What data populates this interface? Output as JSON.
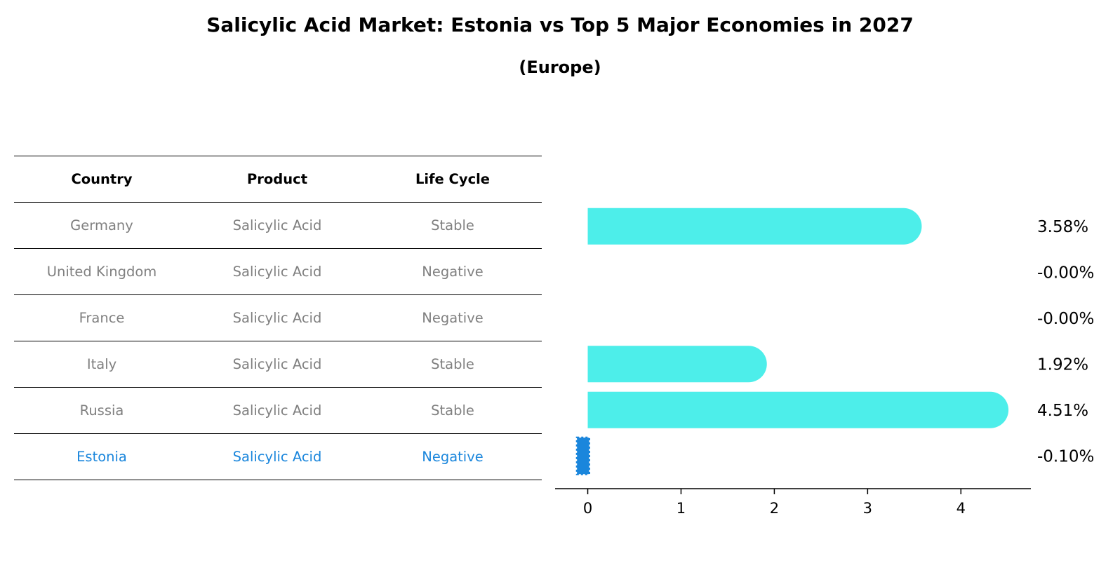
{
  "title": "Salicylic Acid Market: Estonia vs Top 5 Major Economies in 2027",
  "subtitle": "(Europe)",
  "table": {
    "headers": [
      "Country",
      "Product",
      "Life Cycle"
    ],
    "rows": [
      [
        "Germany",
        "Salicylic Acid",
        "Stable"
      ],
      [
        "United Kingdom",
        "Salicylic Acid",
        "Negative"
      ],
      [
        "France",
        "Salicylic Acid",
        "Negative"
      ],
      [
        "Italy",
        "Salicylic Acid",
        "Stable"
      ],
      [
        "Russia",
        "Salicylic Acid",
        "Stable"
      ],
      [
        "Estonia",
        "Salicylic Acid",
        "Negative"
      ]
    ],
    "highlight_row": "Estonia"
  },
  "colors": {
    "bar": "#4deeea",
    "highlight": "#1a86dc",
    "muted_text": "#808080"
  },
  "chart_data": {
    "type": "bar",
    "orientation": "horizontal",
    "categories": [
      "Germany",
      "United Kingdom",
      "France",
      "Italy",
      "Russia",
      "Estonia"
    ],
    "values": [
      3.58,
      -0.0,
      -0.0,
      1.92,
      4.51,
      -0.1
    ],
    "value_labels": [
      "3.58%",
      "-0.00%",
      "-0.00%",
      "1.92%",
      "4.51%",
      "-0.10%"
    ],
    "xlim": [
      -0.35,
      4.75
    ],
    "xticks": [
      0,
      1,
      2,
      3,
      4
    ],
    "xtick_labels": [
      "0",
      "1",
      "2",
      "3",
      "4"
    ],
    "grid": false,
    "highlight": "Estonia"
  }
}
